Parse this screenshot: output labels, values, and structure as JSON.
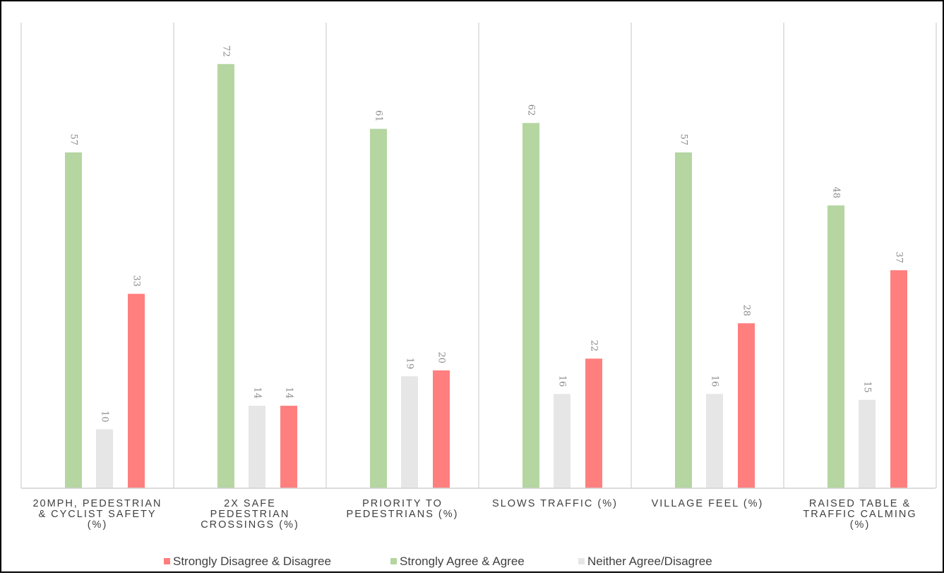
{
  "chart_data": {
    "type": "bar",
    "title": "",
    "xlabel": "",
    "ylabel": "",
    "ylim": [
      0,
      80
    ],
    "grid": false,
    "legend_position": "bottom",
    "categories": [
      [
        "20MPH, PEDESTRIAN",
        "& CYCLIST SAFETY",
        "(%)"
      ],
      [
        "2X SAFE",
        "PEDESTRIAN",
        "CROSSINGS (%)"
      ],
      [
        "PRIORITY TO",
        "PEDESTRIANS (%)"
      ],
      [
        "SLOWS TRAFFIC (%)"
      ],
      [
        "VILLAGE FEEL (%)"
      ],
      [
        "RAISED TABLE &",
        "TRAFFIC CALMING",
        "(%)"
      ]
    ],
    "series": [
      {
        "name": "Strongly Agree & Agree",
        "color": "#b5d5a1",
        "values": [
          57,
          72,
          61,
          62,
          57,
          48
        ]
      },
      {
        "name": "Neither Agree/Disagree",
        "color": "#e6e6e6",
        "values": [
          10,
          14,
          19,
          16,
          16,
          15
        ]
      },
      {
        "name": "Strongly Disagree & Disagree",
        "color": "#ff7f7f",
        "values": [
          33,
          14,
          20,
          22,
          28,
          37
        ]
      }
    ],
    "legend_order": [
      2,
      0,
      1
    ]
  }
}
